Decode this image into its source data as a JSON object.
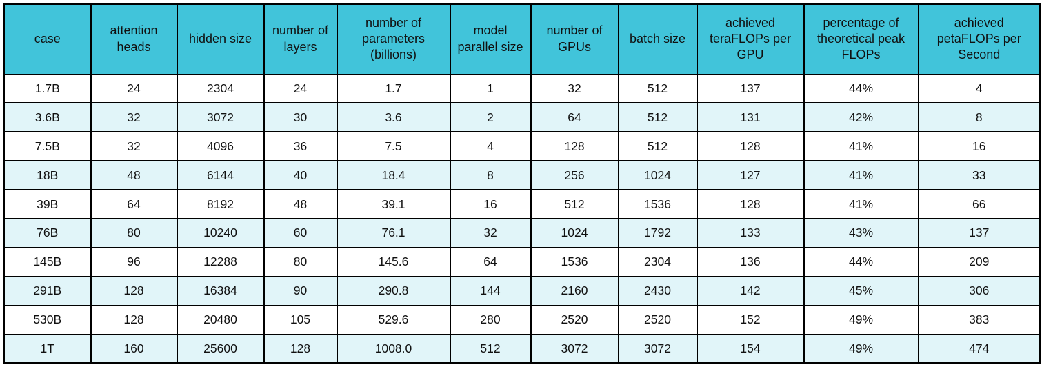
{
  "chart_data": {
    "type": "table",
    "title": "",
    "columns": [
      "case",
      "attention heads",
      "hidden size",
      "number of layers",
      "number of parameters (billions)",
      "model parallel size",
      "number of GPUs",
      "batch size",
      "achieved teraFLOPs per GPU",
      "percentage of theoretical peak FLOPs",
      "achieved petaFLOPs per Second"
    ],
    "rows": [
      [
        "1.7B",
        "24",
        "2304",
        "24",
        "1.7",
        "1",
        "32",
        "512",
        "137",
        "44%",
        "4"
      ],
      [
        "3.6B",
        "32",
        "3072",
        "30",
        "3.6",
        "2",
        "64",
        "512",
        "131",
        "42%",
        "8"
      ],
      [
        "7.5B",
        "32",
        "4096",
        "36",
        "7.5",
        "4",
        "128",
        "512",
        "128",
        "41%",
        "16"
      ],
      [
        "18B",
        "48",
        "6144",
        "40",
        "18.4",
        "8",
        "256",
        "1024",
        "127",
        "41%",
        "33"
      ],
      [
        "39B",
        "64",
        "8192",
        "48",
        "39.1",
        "16",
        "512",
        "1536",
        "128",
        "41%",
        "66"
      ],
      [
        "76B",
        "80",
        "10240",
        "60",
        "76.1",
        "32",
        "1024",
        "1792",
        "133",
        "43%",
        "137"
      ],
      [
        "145B",
        "96",
        "12288",
        "80",
        "145.6",
        "64",
        "1536",
        "2304",
        "136",
        "44%",
        "209"
      ],
      [
        "291B",
        "128",
        "16384",
        "90",
        "290.8",
        "144",
        "2160",
        "2430",
        "142",
        "45%",
        "306"
      ],
      [
        "530B",
        "128",
        "20480",
        "105",
        "529.6",
        "280",
        "2520",
        "2520",
        "152",
        "49%",
        "383"
      ],
      [
        "1T",
        "160",
        "25600",
        "128",
        "1008.0",
        "512",
        "3072",
        "3072",
        "154",
        "49%",
        "474"
      ]
    ],
    "layout": {
      "header_position": "top",
      "grid": true,
      "row_striping": "even rows tinted"
    }
  },
  "colors": {
    "header_bg": "#41c4da",
    "row_bg": "#ffffff",
    "row_alt_bg": "#e1f5f9",
    "border": "#000000",
    "text": "#111111"
  }
}
